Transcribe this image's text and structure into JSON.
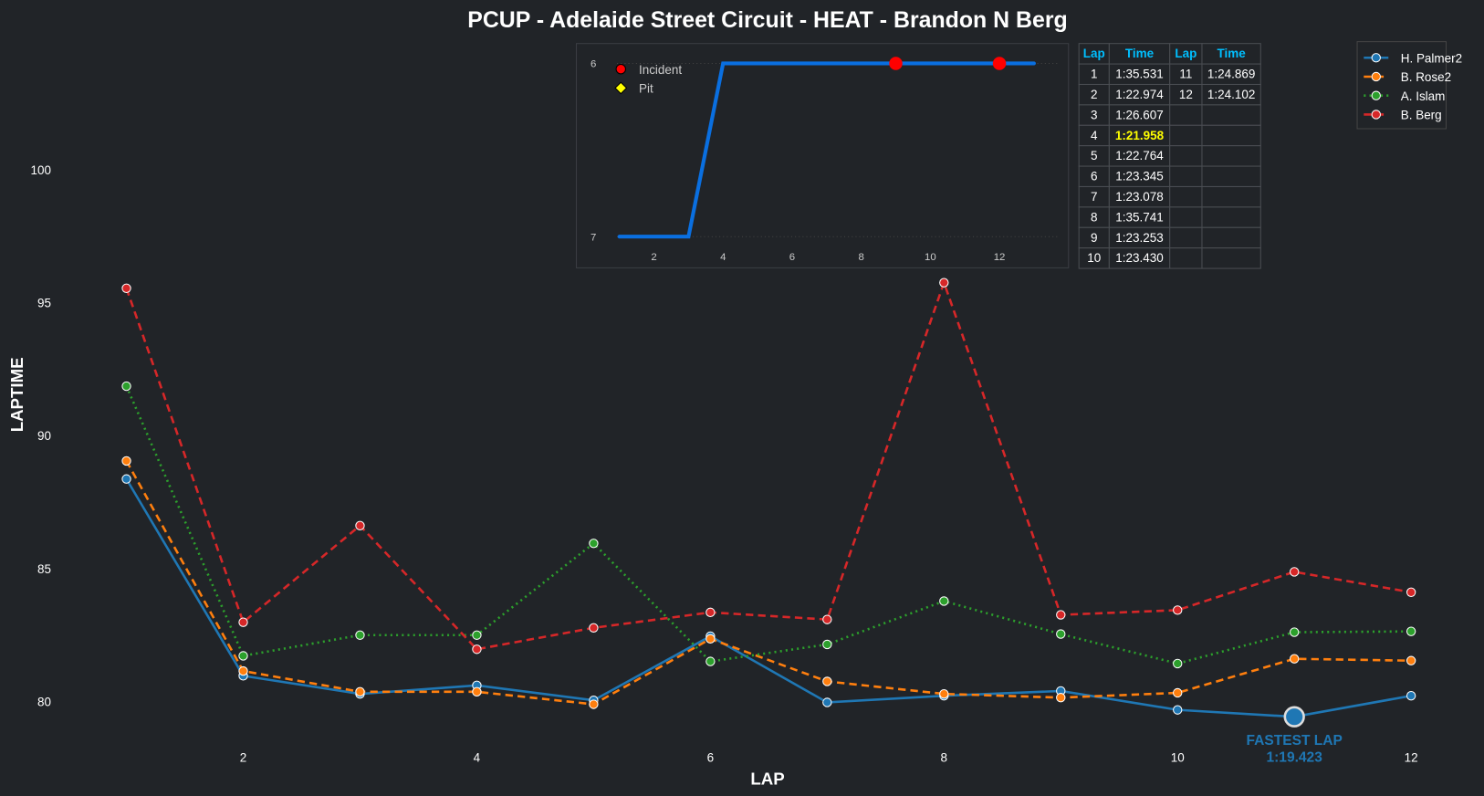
{
  "chart_data": {
    "type": "line",
    "title": "PCUP - Adelaide Street Circuit - HEAT - Brandon N Berg",
    "xlabel": "LAP",
    "ylabel": "LAPTIME",
    "x": [
      1,
      2,
      3,
      4,
      5,
      6,
      7,
      8,
      9,
      10,
      11,
      12
    ],
    "xticks": [
      2,
      4,
      6,
      8,
      10,
      12
    ],
    "yticks": [
      80,
      85,
      90,
      95,
      100
    ],
    "ylim": [
      78.3,
      100.5
    ],
    "grid": false,
    "legend_position": "top-right",
    "series": [
      {
        "name": "H. Palmer2",
        "color": "#1f77b4",
        "style": "solid",
        "values": [
          88.36,
          80.96,
          80.28,
          80.6,
          80.04,
          82.45,
          79.96,
          80.21,
          80.39,
          79.68,
          79.42,
          80.21
        ]
      },
      {
        "name": "B. Rose2",
        "color": "#ff7f0e",
        "style": "dashed",
        "values": [
          89.04,
          81.14,
          80.36,
          80.36,
          79.89,
          82.35,
          80.75,
          80.28,
          80.14,
          80.32,
          81.6,
          81.53
        ]
      },
      {
        "name": "A. Islam",
        "color": "#2ca02c",
        "style": "dotted",
        "values": [
          91.85,
          81.71,
          82.49,
          82.49,
          85.94,
          81.5,
          82.14,
          83.77,
          82.53,
          81.42,
          82.6,
          82.63
        ]
      },
      {
        "name": "B. Berg",
        "color": "#d62728",
        "style": "dashed",
        "values": [
          95.531,
          82.974,
          86.607,
          81.958,
          82.764,
          83.345,
          83.078,
          95.741,
          83.253,
          83.43,
          84.869,
          84.102
        ]
      }
    ],
    "annotation": {
      "label": "FASTEST LAP",
      "time": "1:19.423",
      "lap": 11,
      "value": 79.42,
      "color": "#1f77b4"
    },
    "inset": {
      "type": "line",
      "x": [
        1,
        2,
        3,
        4,
        5,
        6,
        7,
        8,
        9,
        10,
        11,
        12,
        13
      ],
      "values": [
        7,
        7,
        7,
        6,
        6,
        6,
        6,
        6,
        6,
        6,
        6,
        6,
        6
      ],
      "yticks": [
        6,
        7
      ],
      "xticks": [
        2,
        4,
        6,
        8,
        10,
        12
      ],
      "color": "#0a6fe0",
      "incidents": [
        9,
        12
      ],
      "legend": [
        {
          "label": "Incident",
          "color": "#ff0000"
        },
        {
          "label": "Pit",
          "color": "#ffff00"
        }
      ]
    },
    "table": {
      "headers": [
        "Lap",
        "Time",
        "Lap",
        "Time"
      ],
      "header_color": "#00bfff",
      "highlight_color": "#ffff00",
      "rows": [
        [
          "1",
          "1:35.531",
          "11",
          "1:24.869"
        ],
        [
          "2",
          "1:22.974",
          "12",
          "1:24.102"
        ],
        [
          "3",
          "1:26.607",
          "",
          ""
        ],
        [
          "4",
          "1:21.958",
          "",
          ""
        ],
        [
          "5",
          "1:22.764",
          "",
          ""
        ],
        [
          "6",
          "1:23.345",
          "",
          ""
        ],
        [
          "7",
          "1:23.078",
          "",
          ""
        ],
        [
          "8",
          "1:35.741",
          "",
          ""
        ],
        [
          "9",
          "1:23.253",
          "",
          ""
        ],
        [
          "10",
          "1:23.430",
          "",
          ""
        ]
      ],
      "highlight_row": 3
    }
  }
}
